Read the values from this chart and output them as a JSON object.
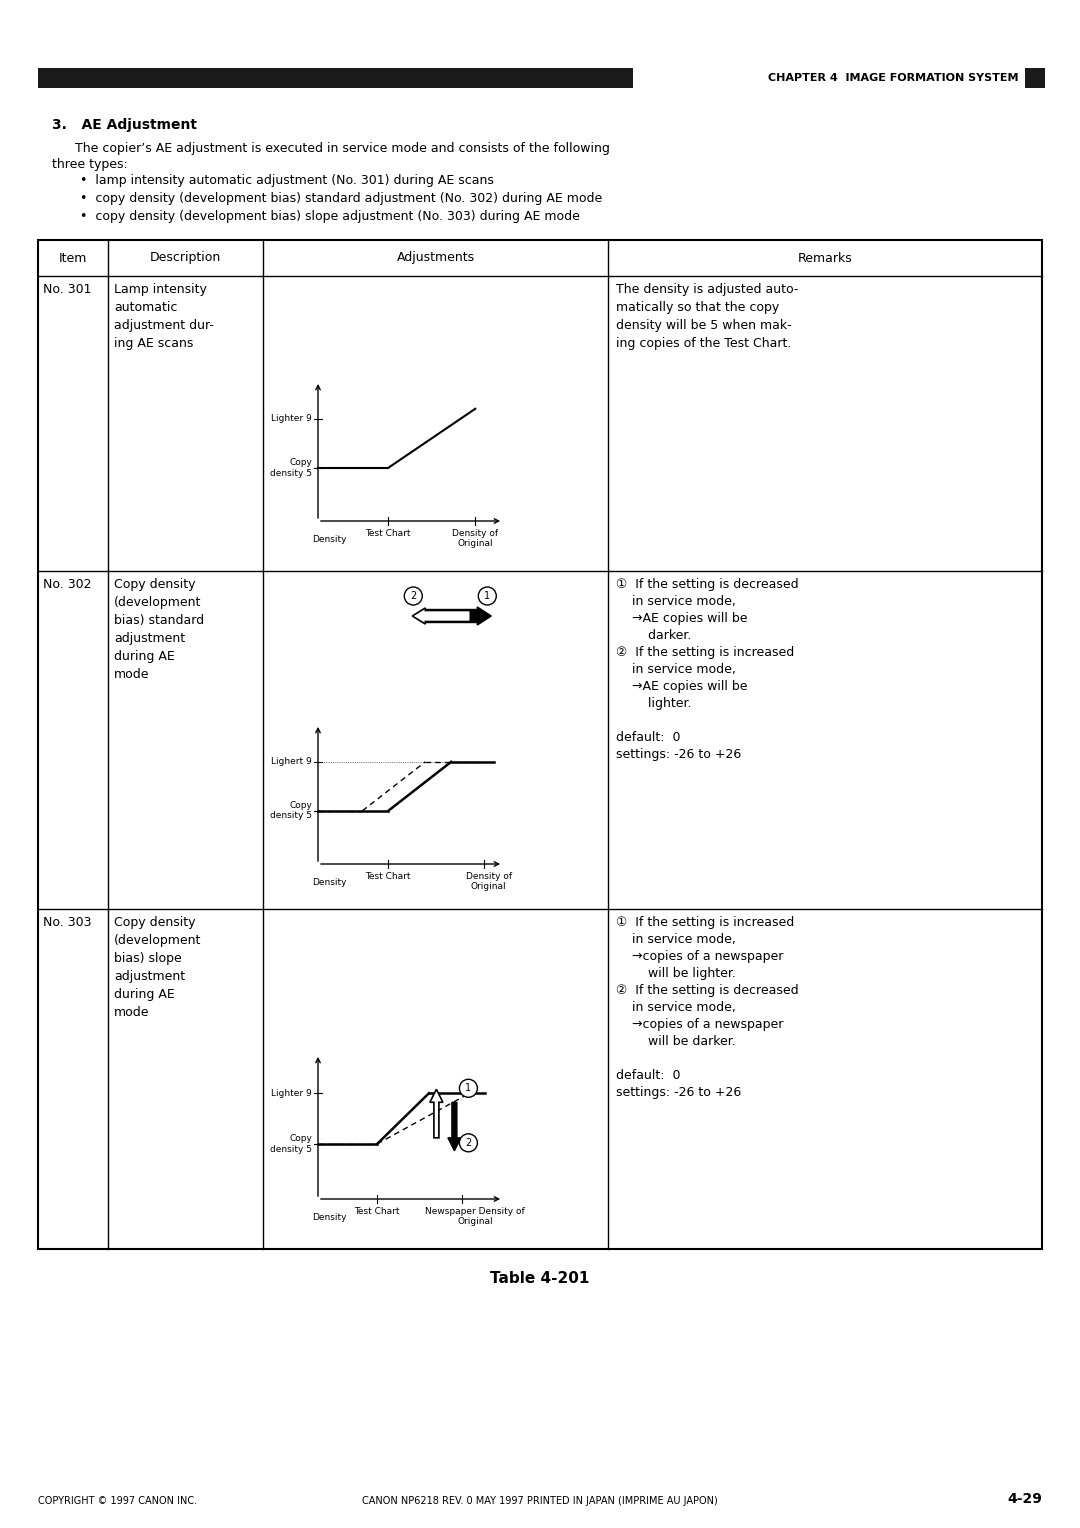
{
  "bg_color": "#ffffff",
  "header_bar_color": "#1a1a1a",
  "chapter_text": "CHAPTER 4  IMAGE FORMATION SYSTEM",
  "section_title": "3.   AE Adjustment",
  "intro_line1": "The copier’s AE adjustment is executed in service mode and consists of the following",
  "intro_line2": "three types:",
  "bullets": [
    "•  lamp intensity automatic adjustment (No. 301) during AE scans",
    "•  copy density (development bias) standard adjustment (No. 302) during AE mode",
    "•  copy density (development bias) slope adjustment (No. 303) during AE mode"
  ],
  "table_headers": [
    "Item",
    "Description",
    "Adjustments",
    "Remarks"
  ],
  "row_items": [
    "No. 301",
    "No. 302",
    "No. 303"
  ],
  "row_descriptions": [
    "Lamp intensity\nautomatic\nadjustment dur-\ning AE scans",
    "Copy density\n(development\nbias) standard\nadjustment\nduring AE\nmode",
    "Copy density\n(development\nbias) slope\nadjustment\nduring AE\nmode"
  ],
  "row_remarks": [
    "The density is adjusted auto-\nmatically so that the copy\ndensity will be 5 when mak-\ning copies of the Test Chart.",
    "①  If the setting is decreased\n    in service mode,\n    →AE copies will be\n        darker.\n②  If the setting is increased\n    in service mode,\n    →AE copies will be\n        lighter.\n\ndefault:  0\nsettings: -26 to +26",
    "①  If the setting is increased\n    in service mode,\n    →copies of a newspaper\n        will be lighter.\n②  If the setting is decreased\n    in service mode,\n    →copies of a newspaper\n        will be darker.\n\ndefault:  0\nsettings: -26 to +26"
  ],
  "footer_left": "COPYRIGHT © 1997 CANON INC.",
  "footer_center": "CANON NP6218 REV. 0 MAY 1997 PRINTED IN JAPAN (IMPRIME AU JAPON)",
  "footer_right": "4-29",
  "table_caption": "Table 4-201",
  "graph1_labels": {
    "y_top": "Lighter 9",
    "y_mid": "Copy\ndensity 5",
    "y_axis": "Density",
    "x_left": "Test Chart",
    "x_right": "Density of\nOriginal"
  },
  "graph2_labels": {
    "y_top": "Lighert 9",
    "y_mid": "Copy\ndensity 5",
    "y_axis": "Density",
    "x_left": "Test Chart",
    "x_right": "Density of\nOriginal"
  },
  "graph3_labels": {
    "y_top": "Lighter 9",
    "y_mid": "Copy\ndensity 5",
    "y_axis": "Density",
    "x_left": "Test Chart",
    "x_right": "Newspaper Density of\nOriginal"
  }
}
